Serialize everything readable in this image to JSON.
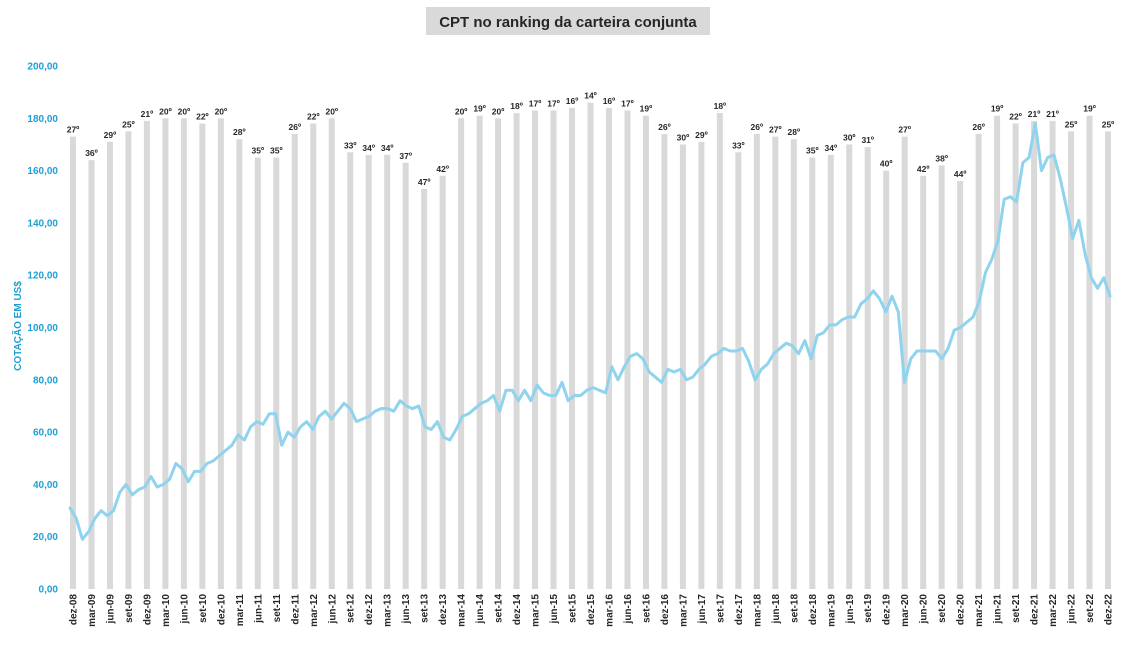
{
  "chart_data": {
    "type": "bar+line",
    "title": "CPT no ranking da carteira conjunta",
    "xlabel": "",
    "ylabel": "COTAÇÃO EM US$",
    "ylim": [
      0,
      200
    ],
    "yticks": [
      "0,00",
      "20,00",
      "40,00",
      "60,00",
      "80,00",
      "100,00",
      "120,00",
      "140,00",
      "160,00",
      "180,00",
      "200,00"
    ],
    "x_tick_labels": [
      "dez-08",
      "mar-09",
      "jun-09",
      "set-09",
      "dez-09",
      "mar-10",
      "jun-10",
      "set-10",
      "dez-10",
      "mar-11",
      "jun-11",
      "set-11",
      "dez-11",
      "mar-12",
      "jun-12",
      "set-12",
      "dez-12",
      "mar-13",
      "jun-13",
      "set-13",
      "dez-13",
      "mar-14",
      "jun-14",
      "set-14",
      "dez-14",
      "mar-15",
      "jun-15",
      "set-15",
      "dez-15",
      "mar-16",
      "jun-16",
      "set-16",
      "dez-16",
      "mar-17",
      "jun-17",
      "set-17",
      "dez-17",
      "mar-18",
      "jun-18",
      "set-18",
      "dez-18",
      "mar-19",
      "jun-19",
      "set-19",
      "dez-19",
      "mar-20",
      "jun-20",
      "set-20",
      "dez-20",
      "mar-21",
      "jun-21",
      "set-21",
      "dez-21",
      "mar-22",
      "jun-22",
      "set-22",
      "dez-22"
    ],
    "grid": false,
    "legend": "none",
    "colors": {
      "bars": "#d9d9d9",
      "line": "#8fd3ee",
      "axis_text": "#1fa0d4",
      "title_bg": "#d9d9d9"
    },
    "bars": {
      "name": "Ranking",
      "positions": [
        "dez-08",
        "mar-09",
        "jun-09",
        "set-09",
        "dez-09",
        "mar-10",
        "jun-10",
        "set-10",
        "dez-10",
        "mar-11",
        "jun-11",
        "set-11",
        "dez-11",
        "mar-12",
        "jun-12",
        "set-12",
        "dez-12",
        "mar-13",
        "jun-13",
        "set-13",
        "dez-13",
        "mar-14",
        "jun-14",
        "set-14",
        "dez-14",
        "mar-15",
        "jun-15",
        "set-15",
        "dez-15",
        "mar-16",
        "jun-16",
        "set-16",
        "dez-16",
        "mar-17",
        "jun-17",
        "set-17",
        "dez-17",
        "mar-18",
        "jun-18",
        "set-18",
        "dez-18",
        "mar-19",
        "jun-19",
        "set-19",
        "dez-19",
        "mar-20",
        "jun-20",
        "set-20",
        "dez-20",
        "mar-21",
        "jun-21",
        "set-21",
        "dez-21",
        "mar-22",
        "jun-22",
        "set-22",
        "dez-22"
      ],
      "labels": [
        "27º",
        "36º",
        "29º",
        "25º",
        "21º",
        "20º",
        "20º",
        "22º",
        "20º",
        "28º",
        "35º",
        "35º",
        "26º",
        "22º",
        "20º",
        "33º",
        "34º",
        "34º",
        "37º",
        "47º",
        "42º",
        "20º",
        "19º",
        "20º",
        "18º",
        "17º",
        "17º",
        "16º",
        "14º",
        "16º",
        "17º",
        "19º",
        "26º",
        "30º",
        "29º",
        "18º",
        "33º",
        "26º",
        "27º",
        "28º",
        "35º",
        "34º",
        "30º",
        "31º",
        "40º",
        "27º",
        "42º",
        "38º",
        "44º",
        "26º",
        "19º",
        "22º",
        "21º",
        "21º",
        "25º",
        "19º",
        "25º"
      ],
      "heights": [
        173,
        164,
        171,
        175,
        179,
        180,
        180,
        178,
        180,
        172,
        165,
        165,
        174,
        178,
        180,
        167,
        166,
        166,
        163,
        153,
        158,
        180,
        181,
        180,
        182,
        183,
        183,
        184,
        186,
        184,
        183,
        181,
        174,
        170,
        171,
        182,
        167,
        174,
        173,
        172,
        165,
        166,
        170,
        169,
        160,
        173,
        158,
        162,
        156,
        174,
        181,
        178,
        179,
        179,
        175,
        181,
        175
      ]
    },
    "line": {
      "name": "Cotação",
      "values": [
        31,
        27,
        19,
        22,
        27,
        30,
        28,
        30,
        37,
        40,
        36,
        38,
        39,
        43,
        39,
        40,
        42,
        48,
        46,
        41,
        45,
        45,
        48,
        49,
        51,
        53,
        55,
        59,
        57,
        62,
        64,
        63,
        67,
        67,
        55,
        60,
        58,
        62,
        64,
        61,
        66,
        68,
        65,
        68,
        71,
        69,
        64,
        65,
        66,
        68,
        69,
        69,
        68,
        72,
        70,
        69,
        70,
        62,
        61,
        64,
        58,
        57,
        61,
        66,
        67,
        69,
        71,
        72,
        74,
        68,
        76,
        76,
        72,
        76,
        72,
        78,
        75,
        74,
        74,
        79,
        72,
        74,
        74,
        76,
        77,
        76,
        75,
        85,
        80,
        85,
        89,
        90,
        88,
        83,
        81,
        79,
        84,
        83,
        84,
        80,
        81,
        84,
        86,
        89,
        90,
        92,
        91,
        91,
        92,
        87,
        80,
        84,
        86,
        90,
        92,
        94,
        93,
        90,
        95,
        88,
        97,
        98,
        101,
        101,
        103,
        104,
        104,
        109,
        111,
        114,
        111,
        106,
        112,
        106,
        79,
        88,
        91,
        91,
        91,
        91,
        88,
        92,
        99,
        100,
        102,
        104,
        110,
        121,
        126,
        133,
        149,
        150,
        148,
        163,
        165,
        178,
        160,
        165,
        166,
        157,
        146,
        134,
        141,
        128,
        119,
        115,
        119,
        112
      ]
    }
  }
}
